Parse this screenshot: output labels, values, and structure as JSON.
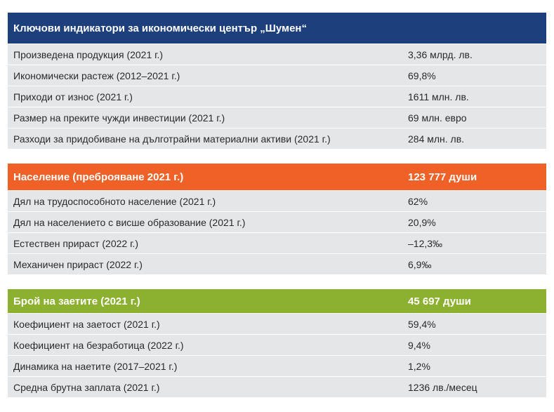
{
  "table1": {
    "title": "Ключови индикатори за икономически център „Шумен“",
    "rows": [
      {
        "label": "Произведена продукция (2021 г.)",
        "value": "3,36 млрд. лв."
      },
      {
        "label": "Икономически растеж (2012–2021 г.)",
        "value": "69,8%"
      },
      {
        "label": "Приходи от износ (2021 г.)",
        "value": "1611 млн. лв."
      },
      {
        "label": "Размер на преките чужди инвестиции (2021 г.)",
        "value": "69 млн. евро"
      },
      {
        "label": "Разходи за придобиване на дълготрайни материални активи (2021 г.)",
        "value": "284 млн. лв."
      }
    ]
  },
  "table2": {
    "header_label": "Население (преброяване 2021 г.)",
    "header_value": "123 777 души",
    "rows": [
      {
        "label": "Дял на трудоспособното население (2021 г.)",
        "value": "62%"
      },
      {
        "label": "Дял на населението с висше образование (2021 г.)",
        "value": "20,9%"
      },
      {
        "label": "Естествен прираст (2022 г.)",
        "value": "–12,3‰"
      },
      {
        "label": "Механичен прираст (2022 г.)",
        "value": "6,9‰"
      }
    ]
  },
  "table3": {
    "header_label": "Брой на заетите (2021 г.)",
    "header_value": "45 697 души",
    "rows": [
      {
        "label": "Коефициент на заетост (2021 г.)",
        "value": "59,4%"
      },
      {
        "label": "Коефициент на безработица (2022 г.)",
        "value": "9,4%"
      },
      {
        "label": "Динамика на наетите (2017–2021 г.)",
        "value": "1,2%"
      },
      {
        "label": "Средна брутна заплата (2021 г.)",
        "value": "1236 лв./месец"
      }
    ]
  },
  "colors": {
    "blue_header": "#1d3f7c",
    "orange_header": "#ef6127",
    "green_header": "#8cb030",
    "row_background": "#e5e6e8"
  }
}
